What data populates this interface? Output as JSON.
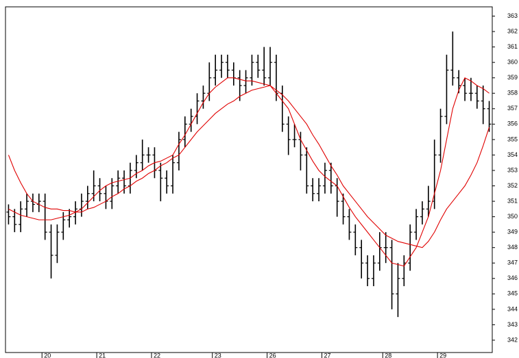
{
  "chart_data": {
    "type": "ohlc",
    "categories": [
      null,
      null,
      null,
      null,
      null,
      null,
      "20",
      null,
      null,
      null,
      null,
      null,
      null,
      null,
      null,
      "21",
      null,
      null,
      null,
      null,
      null,
      null,
      null,
      null,
      "22",
      null,
      null,
      null,
      null,
      null,
      null,
      null,
      null,
      null,
      "23",
      null,
      null,
      null,
      null,
      null,
      null,
      null,
      null,
      "26",
      null,
      null,
      null,
      null,
      null,
      null,
      null,
      null,
      "27",
      null,
      null,
      null,
      null,
      null,
      null,
      null,
      null,
      null,
      "28",
      null,
      null,
      null,
      null,
      null,
      null,
      null,
      null,
      "29",
      null,
      null,
      null,
      null,
      null,
      null,
      null,
      null
    ],
    "open": [
      350.3,
      350,
      349.5,
      350.5,
      351,
      350.8,
      351,
      349,
      347.5,
      349,
      349.8,
      350,
      350.5,
      351,
      351.5,
      352,
      351.5,
      351,
      352,
      352.5,
      352,
      353,
      353.5,
      354,
      354,
      353,
      352.5,
      352,
      353.5,
      355,
      356,
      356.5,
      357.5,
      358,
      359,
      359.5,
      360,
      359.5,
      359,
      358.5,
      359,
      360,
      359.5,
      359,
      360,
      358,
      356,
      355,
      355,
      354,
      352,
      351.5,
      352,
      353,
      352,
      351,
      350,
      349,
      348,
      347,
      346,
      347,
      348,
      348,
      345,
      346,
      347,
      349,
      350,
      350.5,
      351,
      354,
      356.5,
      359.5,
      359,
      358.5,
      358,
      358,
      357.5,
      357
    ],
    "high": [
      350.8,
      350.5,
      351,
      351.5,
      351.5,
      351.5,
      351.5,
      349.5,
      349.5,
      350.3,
      350.5,
      351,
      351.5,
      352,
      353,
      352.5,
      352,
      352.5,
      353,
      353,
      353.5,
      354,
      355,
      354.5,
      354.5,
      353.5,
      353,
      354,
      355.5,
      356.5,
      357,
      358,
      358.5,
      360,
      360.5,
      360.5,
      360.5,
      360,
      359.5,
      359.5,
      360.5,
      360.5,
      361,
      361,
      360.5,
      358.5,
      356.5,
      356,
      355.5,
      354.5,
      352.5,
      352.5,
      353.5,
      353.5,
      352.5,
      351.5,
      350.5,
      349.5,
      348.5,
      347.5,
      347.5,
      349,
      349,
      348.5,
      347,
      347.5,
      349.5,
      350.5,
      351,
      352,
      355,
      357,
      360.5,
      362,
      359.5,
      359,
      359,
      358.5,
      358.5,
      357.5
    ],
    "low": [
      349.5,
      349,
      349,
      350,
      350.3,
      350.3,
      348.5,
      346,
      347,
      348.5,
      349.3,
      349.5,
      350,
      350.5,
      351,
      351,
      350.5,
      350.5,
      351.5,
      351.5,
      351.5,
      352.5,
      353,
      353.5,
      352.5,
      351,
      351.5,
      351.5,
      353,
      354.5,
      355.5,
      356,
      357,
      357.5,
      358.5,
      359,
      359,
      358.5,
      357.5,
      358,
      358.5,
      359,
      358.5,
      358.5,
      357.5,
      355.5,
      354,
      354.5,
      353,
      351.5,
      351,
      351,
      351.5,
      351.5,
      350,
      349.5,
      348.5,
      347.5,
      346,
      345.5,
      345.5,
      346.5,
      347,
      344,
      343.5,
      345.5,
      346.5,
      348.5,
      349.5,
      350,
      350.5,
      353.5,
      356,
      358.5,
      358,
      357.5,
      357.5,
      357,
      356,
      355.5
    ],
    "close": [
      350,
      349.5,
      350.5,
      351,
      350.8,
      351,
      349,
      347.5,
      349,
      349.8,
      350,
      350.5,
      351,
      351.5,
      352,
      351.5,
      351,
      352,
      352.5,
      352,
      353,
      353.5,
      354,
      354,
      353,
      352.5,
      352,
      353.5,
      355,
      356,
      356.5,
      357.5,
      358,
      359,
      359.5,
      360,
      359.5,
      359,
      358.5,
      359,
      360,
      359.5,
      359,
      360,
      358,
      356,
      355,
      355,
      354,
      352,
      351.5,
      352,
      353,
      352,
      351,
      350,
      349,
      348,
      347,
      346,
      347,
      348,
      348,
      345,
      346,
      347,
      349,
      350,
      350.5,
      351,
      354,
      356.5,
      359.5,
      359,
      358.5,
      358,
      358,
      357.5,
      357,
      356
    ],
    "series": [
      {
        "color": "#e00000",
        "values": [
          350.5,
          350.3,
          350.1,
          350,
          349.9,
          349.8,
          349.8,
          349.8,
          349.9,
          350,
          350.1,
          350.3,
          350.5,
          350.9,
          351.3,
          351.7,
          352,
          352.2,
          352.3,
          352.4,
          352.5,
          352.8,
          353,
          353.3,
          353.5,
          353.6,
          353.8,
          354,
          354.7,
          355.3,
          356,
          356.7,
          357.4,
          358,
          358.4,
          358.7,
          359,
          359,
          358.9,
          358.8,
          358.8,
          358.7,
          358.6,
          358.5,
          358,
          357.5,
          357,
          356,
          355,
          354.3,
          353.6,
          353,
          352.6,
          352.3,
          352,
          351.3,
          350.6,
          350,
          349.5,
          349,
          348.5,
          348,
          347.5,
          347,
          346.9,
          346.8,
          347.4,
          348,
          349,
          350,
          351.5,
          353,
          355,
          357,
          358.2,
          359,
          358.8,
          358.5,
          358.3,
          358
        ]
      },
      {
        "color": "#e00000",
        "values": [
          354,
          353,
          352.2,
          351.5,
          351,
          350.8,
          350.6,
          350.5,
          350.5,
          350.4,
          350.4,
          350.3,
          350.3,
          350.5,
          350.6,
          350.8,
          351,
          351.3,
          351.5,
          351.8,
          352,
          352.3,
          352.5,
          352.8,
          353,
          353.3,
          353.5,
          353.8,
          354,
          354.5,
          355,
          355.5,
          355.9,
          356.3,
          356.7,
          357,
          357.3,
          357.5,
          357.8,
          358,
          358.2,
          358.3,
          358.4,
          358.5,
          358.2,
          357.9,
          357.5,
          357,
          356.5,
          356,
          355.3,
          354.7,
          354,
          353.3,
          352.7,
          352,
          351.5,
          351,
          350.5,
          350,
          349.6,
          349.2,
          348.8,
          348.6,
          348.4,
          348.3,
          348.2,
          348.1,
          348,
          348.4,
          349,
          349.8,
          350.5,
          351,
          351.5,
          352,
          352.7,
          353.5,
          354.6,
          355.8
        ]
      }
    ],
    "ylim": [
      341.2,
      363.6
    ],
    "yticks": [
      342,
      343,
      344,
      345,
      346,
      347,
      348,
      349,
      350,
      351,
      352,
      353,
      354,
      355,
      356,
      357,
      358,
      359,
      360,
      361,
      362,
      363
    ],
    "color": "#000000"
  }
}
